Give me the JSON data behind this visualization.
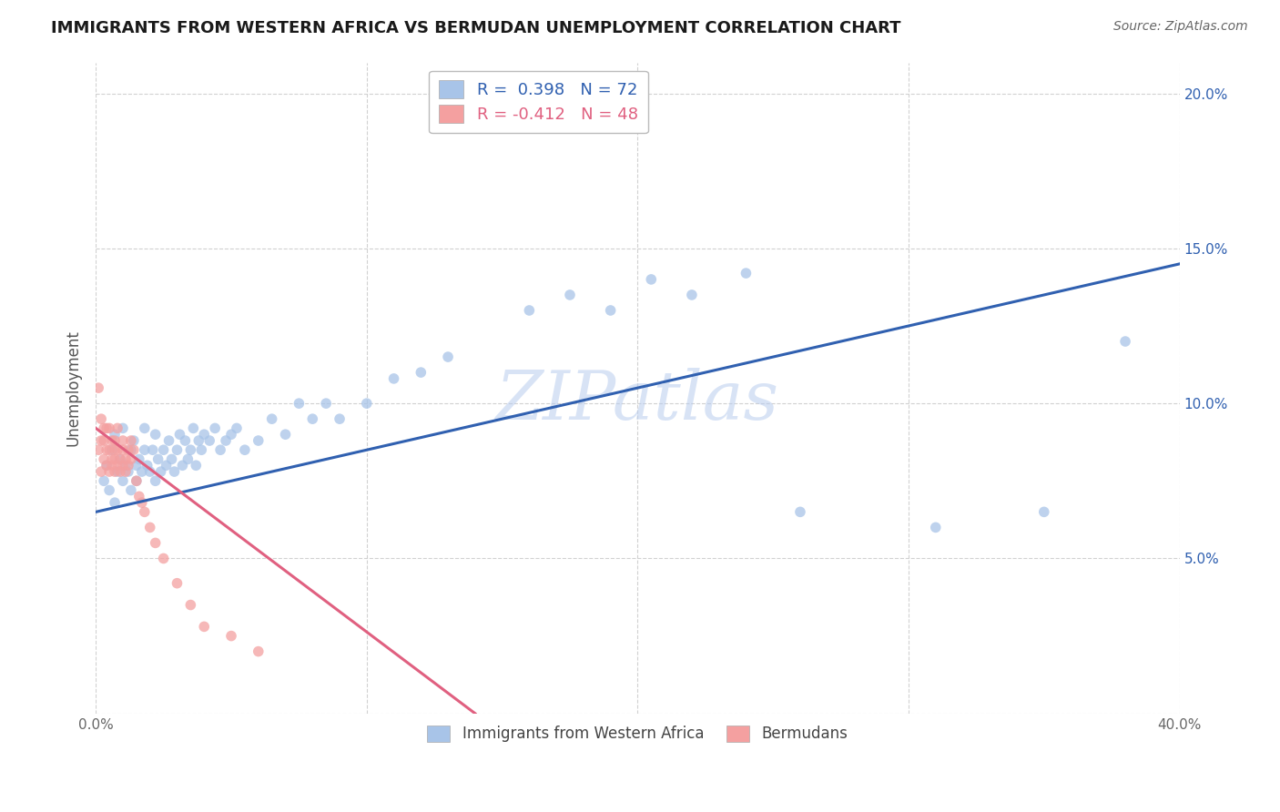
{
  "title": "IMMIGRANTS FROM WESTERN AFRICA VS BERMUDAN UNEMPLOYMENT CORRELATION CHART",
  "source": "Source: ZipAtlas.com",
  "ylabel": "Unemployment",
  "xlim": [
    0.0,
    0.4
  ],
  "ylim": [
    0.0,
    0.21
  ],
  "xticks": [
    0.0,
    0.1,
    0.2,
    0.3,
    0.4
  ],
  "xticklabels": [
    "0.0%",
    "",
    "",
    "",
    "40.0%"
  ],
  "yticks": [
    0.0,
    0.05,
    0.1,
    0.15,
    0.2
  ],
  "yticklabels_right": [
    "",
    "5.0%",
    "10.0%",
    "15.0%",
    "20.0%"
  ],
  "blue_R": 0.398,
  "blue_N": 72,
  "pink_R": -0.412,
  "pink_N": 48,
  "blue_color": "#a8c4e8",
  "pink_color": "#f4a0a0",
  "blue_line_color": "#3060b0",
  "pink_line_color": "#e06080",
  "watermark": "ZIPatlas",
  "blue_line_x0": 0.0,
  "blue_line_y0": 0.065,
  "blue_line_x1": 0.4,
  "blue_line_y1": 0.145,
  "pink_line_x0": 0.0,
  "pink_line_y0": 0.092,
  "pink_line_x1": 0.14,
  "pink_line_y1": 0.0,
  "blue_scatter_x": [
    0.003,
    0.004,
    0.005,
    0.006,
    0.007,
    0.007,
    0.008,
    0.009,
    0.01,
    0.01,
    0.011,
    0.012,
    0.013,
    0.013,
    0.014,
    0.015,
    0.015,
    0.016,
    0.017,
    0.018,
    0.018,
    0.019,
    0.02,
    0.021,
    0.022,
    0.022,
    0.023,
    0.024,
    0.025,
    0.026,
    0.027,
    0.028,
    0.029,
    0.03,
    0.031,
    0.032,
    0.033,
    0.034,
    0.035,
    0.036,
    0.037,
    0.038,
    0.039,
    0.04,
    0.042,
    0.044,
    0.046,
    0.048,
    0.05,
    0.052,
    0.055,
    0.06,
    0.065,
    0.07,
    0.075,
    0.08,
    0.085,
    0.09,
    0.1,
    0.11,
    0.12,
    0.13,
    0.16,
    0.175,
    0.19,
    0.205,
    0.22,
    0.24,
    0.26,
    0.31,
    0.35,
    0.38
  ],
  "blue_scatter_y": [
    0.075,
    0.08,
    0.072,
    0.085,
    0.068,
    0.09,
    0.078,
    0.082,
    0.075,
    0.092,
    0.08,
    0.078,
    0.085,
    0.072,
    0.088,
    0.08,
    0.075,
    0.082,
    0.078,
    0.085,
    0.092,
    0.08,
    0.078,
    0.085,
    0.075,
    0.09,
    0.082,
    0.078,
    0.085,
    0.08,
    0.088,
    0.082,
    0.078,
    0.085,
    0.09,
    0.08,
    0.088,
    0.082,
    0.085,
    0.092,
    0.08,
    0.088,
    0.085,
    0.09,
    0.088,
    0.092,
    0.085,
    0.088,
    0.09,
    0.092,
    0.085,
    0.088,
    0.095,
    0.09,
    0.1,
    0.095,
    0.1,
    0.095,
    0.1,
    0.108,
    0.11,
    0.115,
    0.13,
    0.135,
    0.13,
    0.14,
    0.135,
    0.142,
    0.065,
    0.06,
    0.065,
    0.12
  ],
  "pink_scatter_x": [
    0.001,
    0.001,
    0.002,
    0.002,
    0.002,
    0.003,
    0.003,
    0.003,
    0.004,
    0.004,
    0.004,
    0.005,
    0.005,
    0.005,
    0.006,
    0.006,
    0.006,
    0.007,
    0.007,
    0.007,
    0.007,
    0.008,
    0.008,
    0.008,
    0.009,
    0.009,
    0.01,
    0.01,
    0.01,
    0.011,
    0.011,
    0.012,
    0.012,
    0.013,
    0.013,
    0.014,
    0.015,
    0.016,
    0.017,
    0.018,
    0.02,
    0.022,
    0.025,
    0.03,
    0.035,
    0.04,
    0.05,
    0.06
  ],
  "pink_scatter_y": [
    0.105,
    0.085,
    0.088,
    0.095,
    0.078,
    0.088,
    0.082,
    0.092,
    0.08,
    0.085,
    0.092,
    0.078,
    0.085,
    0.092,
    0.082,
    0.088,
    0.08,
    0.078,
    0.082,
    0.088,
    0.085,
    0.08,
    0.085,
    0.092,
    0.082,
    0.078,
    0.08,
    0.085,
    0.088,
    0.082,
    0.078,
    0.085,
    0.08,
    0.082,
    0.088,
    0.085,
    0.075,
    0.07,
    0.068,
    0.065,
    0.06,
    0.055,
    0.05,
    0.042,
    0.035,
    0.028,
    0.025,
    0.02
  ]
}
